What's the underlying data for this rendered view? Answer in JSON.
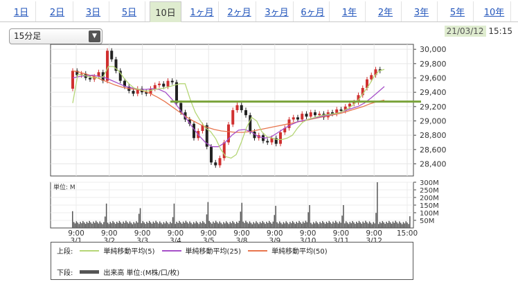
{
  "tabs": [
    {
      "label": "1日",
      "active": false
    },
    {
      "label": "2日",
      "active": false
    },
    {
      "label": "3日",
      "active": false
    },
    {
      "label": "5日",
      "active": false
    },
    {
      "label": "10日",
      "active": true
    },
    {
      "label": "1ヶ月",
      "active": false
    },
    {
      "label": "2ヶ月",
      "active": false
    },
    {
      "label": "3ヶ月",
      "active": false
    },
    {
      "label": "6ヶ月",
      "active": false
    },
    {
      "label": "1年",
      "active": false
    },
    {
      "label": "2年",
      "active": false
    },
    {
      "label": "3年",
      "active": false
    },
    {
      "label": "5年",
      "active": false
    },
    {
      "label": "10年",
      "active": false
    }
  ],
  "interval_select": {
    "value": "15分足"
  },
  "datetime": {
    "date": "21/03/12",
    "time": "15:15"
  },
  "colors": {
    "accent_tab": "#dfeccf",
    "ma5": "#b5d676",
    "ma25": "#a64fc9",
    "ma50": "#e8744c",
    "hline": "#7aa33a",
    "up": "#d03030",
    "down": "#222222",
    "volume": "#555555"
  },
  "chart_data": {
    "type": "candlestick",
    "price_axis": {
      "ylim": [
        28250,
        30050
      ],
      "ticks": [
        "30,000",
        "29,800",
        "29,600",
        "29,400",
        "29,200",
        "29,000",
        "28,800",
        "28,600",
        "28,400"
      ]
    },
    "volume_axis": {
      "unit_label": "単位: M",
      "ylim": [
        0,
        300
      ],
      "ticks": [
        "300M",
        "250M",
        "200M",
        "150M",
        "100M",
        "50M"
      ]
    },
    "time_labels": [
      {
        "time": "9:00",
        "date": "3/1"
      },
      {
        "time": "9:00",
        "date": "3/2"
      },
      {
        "time": "9:00",
        "date": "3/3"
      },
      {
        "time": "9:00",
        "date": "3/4"
      },
      {
        "time": "9:00",
        "date": "3/5"
      },
      {
        "time": "9:00",
        "date": "3/8"
      },
      {
        "time": "9:00",
        "date": "3/9"
      },
      {
        "time": "9:00",
        "date": "3/10"
      },
      {
        "time": "9:00",
        "date": "3/11"
      },
      {
        "time": "9:00",
        "date": "3/12"
      },
      {
        "time": "15:00",
        "date": ""
      }
    ],
    "price_path": [
      29450,
      29700,
      29640,
      29660,
      29600,
      29580,
      29620,
      29680,
      29560,
      29980,
      29860,
      29700,
      29560,
      29480,
      29420,
      29380,
      29450,
      29400,
      29380,
      29450,
      29500,
      29520,
      29480,
      29560,
      29540,
      29250,
      29120,
      29020,
      28960,
      28760,
      28860,
      28940,
      28640,
      28420,
      28380,
      28480,
      28700,
      28950,
      29150,
      29220,
      29150,
      29080,
      28850,
      28760,
      28800,
      28720,
      28700,
      28760,
      28680,
      28840,
      28900,
      29020,
      29050,
      29020,
      29100,
      29060,
      29120,
      29080,
      29100,
      29050,
      29120,
      29100,
      29160,
      29140,
      29200,
      29240,
      29260,
      29360,
      29460,
      29580,
      29640,
      29720,
      29700
    ],
    "ma5_path": [
      29250,
      29650,
      29640,
      29620,
      29600,
      29600,
      29620,
      29760,
      29760,
      29700,
      29600,
      29520,
      29460,
      29440,
      29420,
      29420,
      29440,
      29450,
      29460,
      29480,
      29500,
      29520,
      29520,
      29300,
      29120,
      29000,
      28900,
      28850,
      28750,
      28600,
      28500,
      28480,
      28530,
      28700,
      28900,
      29050,
      29000,
      28850,
      28780,
      28760,
      28740,
      28740,
      28760,
      28800,
      28900,
      28980,
      29020,
      29040,
      29060,
      29080,
      29090,
      29100,
      29110,
      29140,
      29180,
      29230,
      29300,
      29400,
      29500,
      29620,
      29700,
      29720
    ],
    "ma25_path": [
      29600,
      29620,
      29630,
      29640,
      29620,
      29600,
      29560,
      29520,
      29480,
      29460,
      29440,
      29440,
      29450,
      29440,
      29400,
      29300,
      29180,
      29050,
      28920,
      28800,
      28700,
      28640,
      28640,
      28700,
      28800,
      28870,
      28880,
      28840,
      28780,
      28760,
      28780,
      28840,
      28900,
      28950,
      28990,
      29010,
      29030,
      29050,
      29070,
      29090,
      29110,
      29140,
      29170,
      29200,
      29250,
      29320,
      29400,
      29480
    ],
    "ma50_path": [
      29700,
      29680,
      29650,
      29620,
      29580,
      29540,
      29500,
      29470,
      29450,
      29440,
      29420,
      29380,
      29330,
      29270,
      29200,
      29130,
      29060,
      29000,
      28950,
      28910,
      28880,
      28860,
      28850,
      28840,
      28840,
      28850,
      28870,
      28890,
      28910,
      28930,
      28950,
      28970,
      28990,
      29010,
      29030,
      29050,
      29070,
      29090,
      29110,
      29140,
      29170,
      29200,
      29240,
      29270,
      29290
    ],
    "reference_level": 29270,
    "volume_spikes": [
      110,
      160,
      130,
      160,
      170,
      165,
      145,
      150,
      150,
      300,
      100
    ]
  },
  "legend": {
    "upper_label": "上段:",
    "lower_label": "下段:",
    "ma5_label": "単純移動平均(5)",
    "ma25_label": "単純移動平均(25)",
    "ma50_label": "単純移動平均(50)",
    "volume_label": "出来高 単位:(M株/口/枚)"
  }
}
